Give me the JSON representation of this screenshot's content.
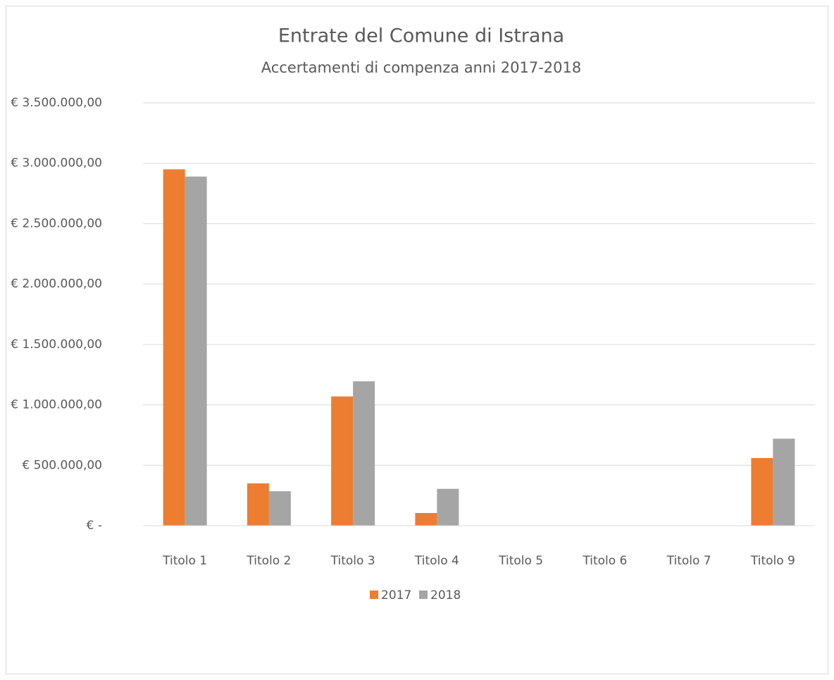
{
  "chart_data": {
    "type": "bar",
    "title": "Entrate del Comune di Istrana",
    "subtitle": "Accertamenti di compenza anni 2017-2018",
    "categories": [
      "Titolo 1",
      "Titolo 2",
      "Titolo 3",
      "Titolo 4",
      "Titolo 5",
      "Titolo 6",
      "Titolo 7",
      "Titolo 9"
    ],
    "series": [
      {
        "name": "2017",
        "color": "#ed7d31",
        "values": [
          2950000,
          350000,
          1070000,
          105000,
          0,
          0,
          0,
          560000
        ]
      },
      {
        "name": "2018",
        "color": "#a5a5a5",
        "values": [
          2890000,
          285000,
          1195000,
          305000,
          0,
          0,
          0,
          720000
        ]
      }
    ],
    "ylim": [
      0,
      3500000
    ],
    "yticks": [
      {
        "value": 0,
        "label": "€ -"
      },
      {
        "value": 500000,
        "label": "€ 500.000,00"
      },
      {
        "value": 1000000,
        "label": "€ 1.000.000,00"
      },
      {
        "value": 1500000,
        "label": "€ 1.500.000,00"
      },
      {
        "value": 2000000,
        "label": "€ 2.000.000,00"
      },
      {
        "value": 2500000,
        "label": "€ 2.500.000,00"
      },
      {
        "value": 3000000,
        "label": "€ 3.000.000,00"
      },
      {
        "value": 3500000,
        "label": "€ 3.500.000,00"
      }
    ],
    "grid": true,
    "legend": "bottom"
  }
}
